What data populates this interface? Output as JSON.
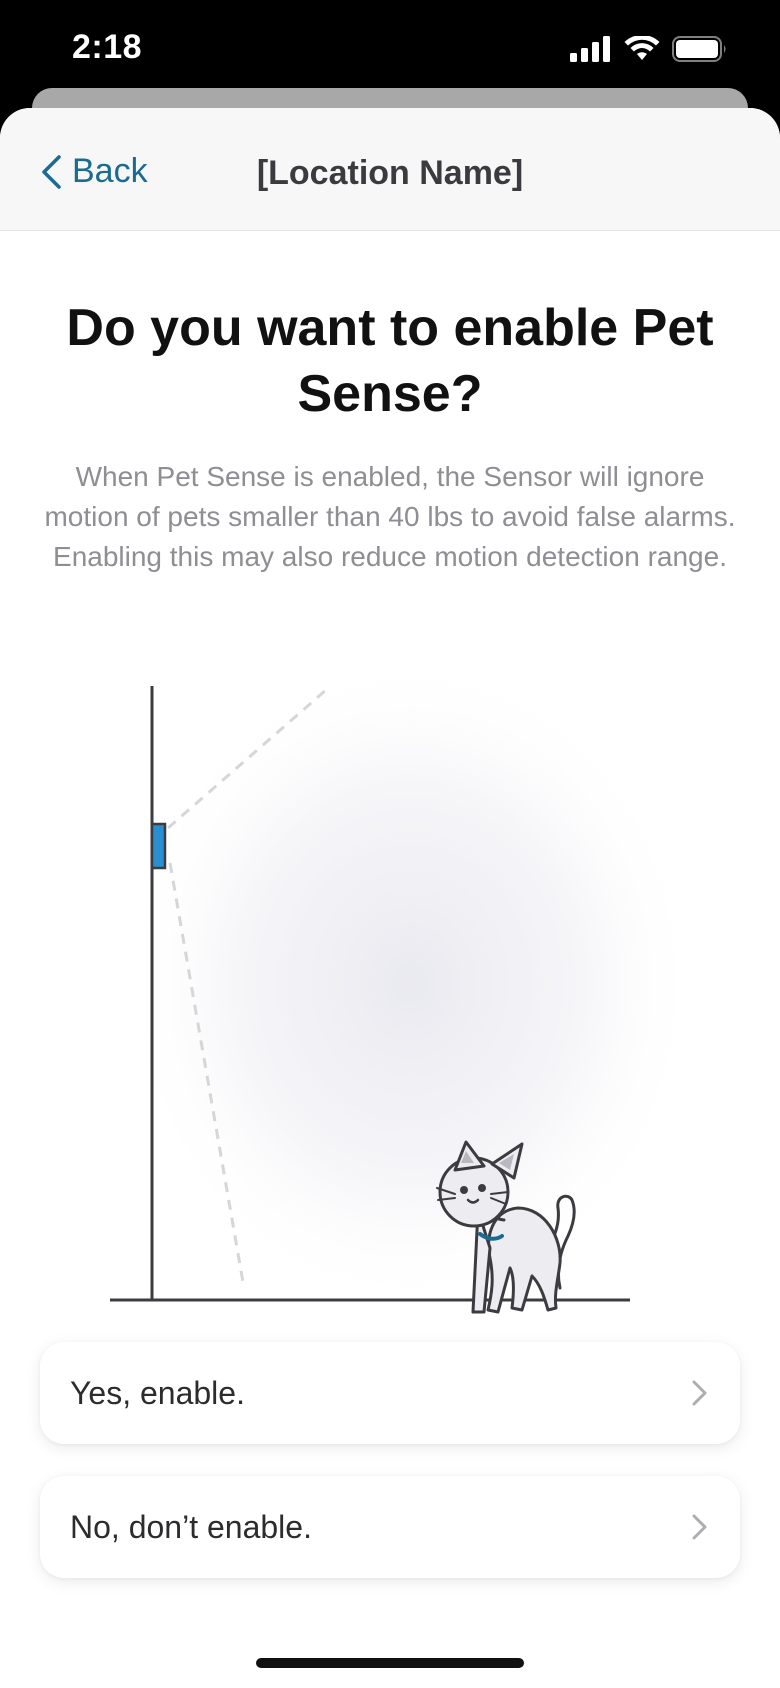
{
  "status_bar": {
    "time": "2:18",
    "icons": [
      "cellular-signal-icon",
      "wifi-icon",
      "battery-icon"
    ]
  },
  "nav": {
    "back_label": "Back",
    "title": "[Location Name]"
  },
  "content": {
    "headline": "Do you want to enable Pet Sense?",
    "description": "When Pet Sense is enabled, the Sensor will ignore motion of pets smaller than 40 lbs to avoid false alarms. Enabling this may also reduce motion detection range."
  },
  "options": [
    {
      "label": "Yes, enable.",
      "icon": "chevron-right-icon"
    },
    {
      "label": "No, don’t enable.",
      "icon": "chevron-right-icon"
    }
  ],
  "colors": {
    "accent": "#1a6b8f",
    "sensor": "#2a8fd0",
    "nav_background": "#f7f7f8",
    "description_text": "#8e8e93"
  }
}
